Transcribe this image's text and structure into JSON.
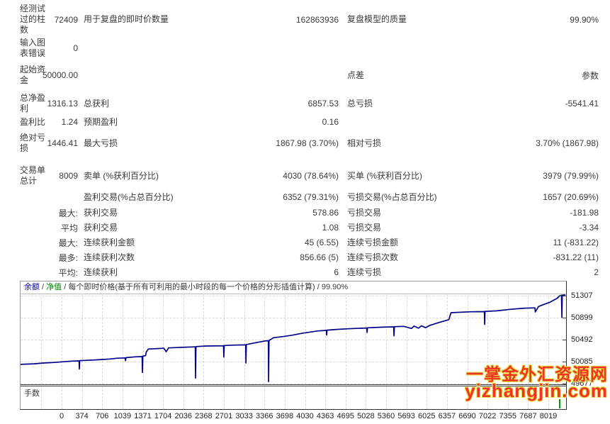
{
  "report": {
    "rows": [
      {
        "c1": "经测试过的柱数",
        "v1": "72409",
        "c2": "用于复盘的即时价数量",
        "v2": "162863936",
        "c3": "复盘模型的质量",
        "v3": "99.90%"
      },
      {
        "c1": "输入图表错误",
        "v1": "0",
        "c2": "",
        "v2": "",
        "c3": "",
        "v3": ""
      },
      {
        "c1": "起始资金",
        "v1": "50000.00",
        "c2": "",
        "v2": "",
        "c3": "点差",
        "v3": "参数"
      },
      {
        "c1": "总净盈利",
        "v1": "1316.13",
        "c2": "总获利",
        "v2": "6857.53",
        "c3": "总亏损",
        "v3": "-5541.41"
      },
      {
        "c1": "盈利比",
        "v1": "1.24",
        "c2": "预期盈利",
        "v2": "0.16",
        "c3": "",
        "v3": ""
      },
      {
        "c1": "绝对亏损",
        "v1": "1446.41",
        "c2": "最大亏损",
        "v2": "1867.98 (3.70%)",
        "c3": "相对亏损",
        "v3": "3.70% (1867.98)"
      },
      {
        "c1": "交易单总计",
        "v1": "8009",
        "c2": "卖单 (%获利百分比)",
        "v2": "4030 (78.64%)",
        "c3": "买单 (%获利百分比)",
        "v3": "3979 (79.99%)"
      },
      {
        "c1": "",
        "v1": "",
        "c2": "盈利交易(%占总百分比)",
        "v2": "6352 (79.31%)",
        "c3": "亏损交易(%占总百分比)",
        "v3": "1657 (20.69%)"
      },
      {
        "c1": "",
        "v1": "最大:",
        "c2": "获利交易",
        "v2": "578.86",
        "c3": "亏损交易",
        "v3": "-181.98"
      },
      {
        "c1": "",
        "v1": "平均",
        "c2": "获利交易",
        "v2": "1.08",
        "c3": "亏损交易",
        "v3": "-3.34"
      },
      {
        "c1": "",
        "v1": "最大:",
        "c2": "连续获利金额",
        "v2": "45 (6.55)",
        "c3": "连续亏损金额",
        "v3": "11 (-831.22)"
      },
      {
        "c1": "",
        "v1": "最多:",
        "c2": "连续获利次数",
        "v2": "856.66 (5)",
        "c3": "连续亏损次数",
        "v3": "-831.22 (11)"
      },
      {
        "c1": "",
        "v1": "平均:",
        "c2": "连续获利",
        "v2": "6",
        "c3": "连续亏损",
        "v3": "2"
      }
    ]
  },
  "chart": {
    "legend": {
      "balance_label": "余额",
      "equity_label": "净值",
      "separator": " / ",
      "description": "每个即时价格(基于所有可利用的最小时段的每一个价格的分形插值计算)",
      "quality": "99.90%"
    },
    "lots_label": "手数"
  },
  "watermark": {
    "line1": "一掌金外汇资源网",
    "line2": "yizhangjin.com",
    "color": "#ee3524"
  },
  "chart_data": {
    "type": "line",
    "title": "",
    "xlabel": "",
    "ylabel": "",
    "x_range": [
      0,
      8100
    ],
    "y_range": [
      49677,
      51307
    ],
    "x_ticks": [
      0,
      374,
      706,
      1039,
      1371,
      1704,
      2036,
      2368,
      2701,
      3033,
      3366,
      3698,
      4030,
      4363,
      4695,
      5028,
      5360,
      5693,
      6025,
      6357,
      6690,
      7022,
      7355,
      7687,
      8019
    ],
    "y_ticks": [
      51307,
      50899,
      50492,
      50085,
      49677
    ],
    "grid": "dashed",
    "legend_position": "top-left",
    "series": [
      {
        "name": "余额",
        "color": "#00008b",
        "points": [
          [
            0,
            50020
          ],
          [
            200,
            50030
          ],
          [
            340,
            50045
          ],
          [
            500,
            50055
          ],
          [
            760,
            50080
          ],
          [
            870,
            50085
          ],
          [
            874,
            49935
          ],
          [
            880,
            50090
          ],
          [
            1075,
            50100
          ],
          [
            1200,
            50110
          ],
          [
            1330,
            50120
          ],
          [
            1440,
            50135
          ],
          [
            1555,
            50140
          ],
          [
            1560,
            50090
          ],
          [
            1570,
            50145
          ],
          [
            1700,
            50160
          ],
          [
            1808,
            50165
          ],
          [
            1812,
            49870
          ],
          [
            1818,
            50175
          ],
          [
            1858,
            50180
          ],
          [
            1870,
            50250
          ],
          [
            1900,
            50305
          ],
          [
            2000,
            50310
          ],
          [
            2130,
            50320
          ],
          [
            2165,
            50255
          ],
          [
            2200,
            50325
          ],
          [
            2390,
            50335
          ],
          [
            2598,
            50345
          ],
          [
            2602,
            49765
          ],
          [
            2608,
            50350
          ],
          [
            2760,
            50360
          ],
          [
            3018,
            50365
          ],
          [
            3022,
            50155
          ],
          [
            3028,
            50370
          ],
          [
            3180,
            50378
          ],
          [
            3347,
            50382
          ],
          [
            3351,
            50045
          ],
          [
            3357,
            50388
          ],
          [
            3510,
            50425
          ],
          [
            3640,
            50455
          ],
          [
            3684,
            50458
          ],
          [
            3688,
            49700
          ],
          [
            3694,
            50465
          ],
          [
            3730,
            50490
          ],
          [
            3760,
            50515
          ],
          [
            3900,
            50535
          ],
          [
            4035,
            50560
          ],
          [
            4200,
            50600
          ],
          [
            4425,
            50640
          ],
          [
            4547,
            50650
          ],
          [
            4551,
            50565
          ],
          [
            4557,
            50655
          ],
          [
            4700,
            50668
          ],
          [
            4865,
            50680
          ],
          [
            5148,
            50695
          ],
          [
            5152,
            50612
          ],
          [
            5158,
            50698
          ],
          [
            5390,
            50710
          ],
          [
            5548,
            50715
          ],
          [
            5552,
            50548
          ],
          [
            5558,
            50720
          ],
          [
            5700,
            50725
          ],
          [
            5813,
            50685
          ],
          [
            5850,
            50730
          ],
          [
            5918,
            50692
          ],
          [
            5960,
            50735
          ],
          [
            6023,
            50700
          ],
          [
            6080,
            50740
          ],
          [
            6230,
            50800
          ],
          [
            6360,
            50845
          ],
          [
            6368,
            50852
          ],
          [
            6400,
            50978
          ],
          [
            6550,
            50988
          ],
          [
            6700,
            50996
          ],
          [
            6896,
            50998
          ],
          [
            6900,
            50762
          ],
          [
            6906,
            51002
          ],
          [
            7080,
            51012
          ],
          [
            7290,
            51042
          ],
          [
            7498,
            51062
          ],
          [
            7648,
            51068
          ],
          [
            7653,
            50992
          ],
          [
            7700,
            51092
          ],
          [
            7760,
            51122
          ],
          [
            7870,
            51172
          ],
          [
            7975,
            51242
          ],
          [
            8020,
            51295
          ],
          [
            8042,
            51302
          ],
          [
            8048,
            50892
          ],
          [
            8054,
            51305
          ],
          [
            8100,
            51307
          ]
        ]
      },
      {
        "name": "净值",
        "color": "#008000",
        "points": [
          [
            8020,
            51295
          ],
          [
            8042,
            51302
          ]
        ]
      }
    ]
  }
}
